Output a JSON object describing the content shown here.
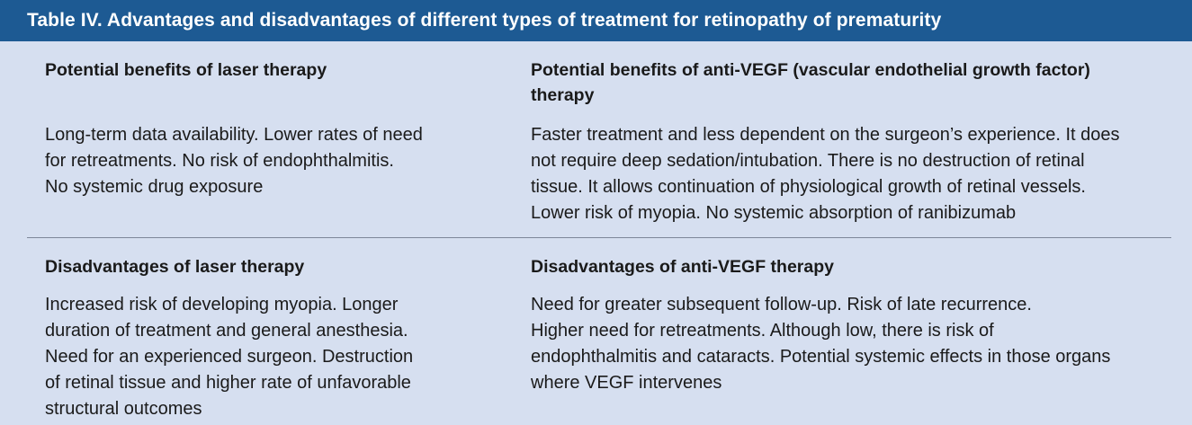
{
  "table": {
    "title": "Table IV.  Advantages and disadvantages of different types of treatment for retinopathy of prematurity",
    "rows": [
      {
        "left": {
          "heading": "Potential benefits of laser therapy",
          "lines": [
            "Long-term data availability. Lower rates of need",
            "for retreatments. No risk of endophthalmitis.",
            "No systemic drug exposure"
          ]
        },
        "right": {
          "heading_lines": [
            "Potential benefits of anti-VEGF (vascular endothelial growth factor)",
            "therapy"
          ],
          "lines": [
            "Faster treatment and less dependent on the surgeon’s experience. It does",
            "not require deep sedation/intubation. There is no destruction of retinal",
            "tissue. It allows continuation of physiological growth of retinal vessels.",
            "Lower risk of myopia. No systemic absorption of ranibizumab"
          ]
        }
      },
      {
        "left": {
          "heading": "Disadvantages of laser therapy",
          "lines": [
            "Increased risk of developing myopia. Longer",
            "duration of treatment and general anesthesia.",
            "Need for an experienced surgeon. Destruction",
            "of retinal tissue and higher rate of unfavorable",
            "structural outcomes"
          ]
        },
        "right": {
          "heading": "Disadvantages of anti-VEGF therapy",
          "lines": [
            "Need for greater subsequent follow-up. Risk of late recurrence.",
            "Higher need for retreatments. Although low, there is risk of",
            "endophthalmitis and cataracts. Potential systemic effects in those organs",
            "where VEGF intervenes"
          ]
        }
      }
    ]
  },
  "colors": {
    "title_bar": "#1d5a93",
    "background": "#d6dff0",
    "divider": "#7d8799"
  }
}
